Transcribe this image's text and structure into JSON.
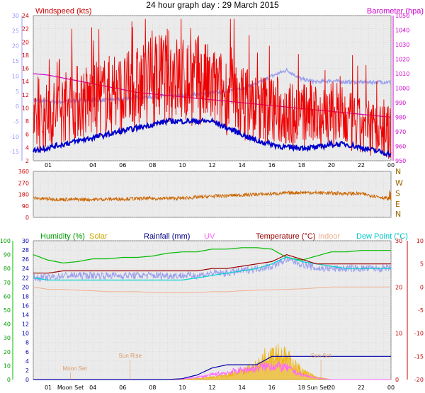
{
  "title": "24 hour graph day : 29 March 2015",
  "colors": {
    "wind": "#ee0000",
    "gust_avg": "#0000cc",
    "barometer": "#d000d0",
    "temp_shade": "#9aa0ee",
    "direction": "#cc6600",
    "humidity": "#00bb00",
    "temperature": "#990000",
    "dewpoint": "#00d0d0",
    "indoor": "#f0b090",
    "rainfall": "#0000aa",
    "solar": "#eeb000",
    "uv": "#ff66ff",
    "temp_axis": "#9999ff",
    "ticklabel": "#cc0000",
    "dir_letters": "#996600",
    "grid": "#cfcfcf",
    "panel_bg": "#ebebeb"
  },
  "x_labels": [
    "01",
    "04",
    "06",
    "08",
    "10",
    "12",
    "14",
    "16",
    "18",
    "20",
    "22",
    "00"
  ],
  "chart_data": [
    {
      "type": "line",
      "title": "",
      "left_axis_label": "Windspeed (kts)",
      "right_axis_label": "Barometer (hpa)",
      "ylim_wind": [
        2,
        24
      ],
      "wind_ticks": [
        2,
        4,
        6,
        8,
        10,
        12,
        14,
        16,
        18,
        20,
        22,
        24
      ],
      "ylim_baro": [
        950,
        1050
      ],
      "baro_ticks": [
        950,
        960,
        970,
        980,
        990,
        1000,
        1010,
        1020,
        1030,
        1040,
        1050
      ],
      "temp_ticks": [
        -15,
        -10,
        -5,
        0,
        5,
        10,
        15,
        20,
        25,
        30
      ],
      "ylim_temp": [
        -18,
        30
      ],
      "hours": [
        0,
        1,
        2,
        3,
        4,
        5,
        6,
        7,
        8,
        9,
        10,
        11,
        12,
        13,
        14,
        15,
        16,
        17,
        18,
        19,
        20,
        21,
        22,
        23,
        24
      ],
      "series": [
        {
          "name": "Windspeed",
          "values": [
            7,
            9,
            10,
            11,
            11,
            12,
            12,
            13,
            14,
            15,
            14,
            14,
            13,
            12,
            11,
            10,
            10,
            9,
            9,
            9,
            9,
            8,
            7,
            7,
            6
          ]
        },
        {
          "name": "Windspeed avg",
          "values": [
            3.5,
            4,
            4.5,
            5,
            5.5,
            6,
            6.5,
            7,
            7.5,
            8,
            8,
            8,
            8,
            7,
            6,
            5,
            4.5,
            4,
            4,
            4,
            4.5,
            4.5,
            4,
            3.5,
            3
          ]
        },
        {
          "name": "Barometer",
          "values": [
            1010,
            1009,
            1007,
            1005,
            1003,
            1001,
            999,
            997,
            996,
            995,
            994,
            993,
            992,
            991,
            990,
            989,
            988,
            987,
            986,
            985,
            984,
            983,
            982,
            981,
            980
          ]
        },
        {
          "name": "Temperature",
          "values": [
            2,
            1.5,
            1.5,
            2,
            2,
            2,
            2.5,
            3,
            3,
            3.5,
            3.5,
            4,
            4.5,
            5,
            6,
            7.5,
            10,
            12,
            9,
            8,
            8.5,
            8,
            8,
            8,
            8
          ]
        }
      ]
    },
    {
      "type": "line",
      "ylim": [
        0,
        360
      ],
      "ticks": [
        0,
        90,
        180,
        270,
        360
      ],
      "direction_letters": [
        "N",
        "W",
        "S",
        "E",
        "N"
      ],
      "hours": [
        0,
        2,
        4,
        6,
        8,
        10,
        12,
        14,
        16,
        18,
        20,
        22,
        24
      ],
      "series": [
        {
          "name": "Wind direction",
          "values": [
            150,
            140,
            140,
            145,
            148,
            150,
            165,
            175,
            185,
            195,
            190,
            185,
            145
          ]
        }
      ]
    },
    {
      "type": "line",
      "labels": {
        "humidity": "Humidity (%)",
        "solar": "Solar",
        "rainfall": "Rainfall (mm)",
        "uv": "UV",
        "temperature": "Temperature (°C)",
        "indoor": "Indoor",
        "dewpoint": "Dew Point (°C)"
      },
      "humidity_ticks": [
        0,
        10,
        20,
        30,
        40,
        50,
        60,
        70,
        80,
        90,
        100
      ],
      "ylim_humidity": [
        0,
        100
      ],
      "rain_ticks": [
        0,
        2,
        4,
        6,
        8,
        10,
        12,
        14,
        16,
        18,
        20,
        22,
        24,
        26,
        28,
        30
      ],
      "ylim_rain": [
        0,
        30
      ],
      "temp_right_ticks": [
        -20,
        -15,
        -10,
        -5,
        0,
        5,
        10
      ],
      "ylim_temp_right": [
        -20,
        10
      ],
      "hours": [
        0,
        1,
        2,
        3,
        4,
        5,
        6,
        7,
        8,
        9,
        10,
        11,
        12,
        13,
        14,
        15,
        16,
        17,
        18,
        19,
        20,
        21,
        22,
        23,
        24
      ],
      "series": [
        {
          "name": "Humidity",
          "values": [
            90,
            86,
            84,
            85,
            87,
            87,
            88,
            88,
            89,
            91,
            92,
            92,
            94,
            94,
            95,
            95,
            94,
            88,
            86,
            89,
            92,
            92,
            93,
            93,
            93
          ]
        },
        {
          "name": "Temperature",
          "values": [
            3,
            3,
            3.5,
            3.5,
            3.5,
            3.5,
            3.5,
            3.5,
            3.5,
            3.5,
            3.5,
            3.5,
            4,
            4,
            4.5,
            5,
            5.5,
            7,
            6,
            5,
            5,
            5,
            5,
            5,
            5
          ]
        },
        {
          "name": "Dew Point",
          "values": [
            2,
            1.5,
            1.5,
            1.5,
            1.5,
            1.5,
            1.5,
            1.5,
            1.5,
            1.5,
            1.5,
            2,
            2.5,
            3,
            3.5,
            4,
            5,
            6.5,
            5.5,
            5,
            4.5,
            4,
            4,
            4,
            4
          ]
        },
        {
          "name": "Indoor",
          "values": [
            20,
            19.5,
            19.5,
            19.3,
            19.2,
            19,
            19,
            19,
            18.8,
            18.8,
            18.8,
            18.8,
            19,
            19,
            19.2,
            19.3,
            19.4,
            19.5,
            19.6,
            19.8,
            20,
            20,
            20,
            20,
            20
          ]
        },
        {
          "name": "Rainfall",
          "values": [
            0,
            0,
            0,
            0,
            0,
            0,
            0,
            0,
            0,
            0,
            0.2,
            1,
            2.5,
            3.2,
            3.2,
            3.2,
            5,
            5,
            5,
            5,
            5,
            5,
            5,
            5,
            5
          ]
        },
        {
          "name": "Solar",
          "values": [
            0,
            0,
            0,
            0,
            0,
            0,
            0,
            0,
            0,
            0,
            0,
            0.2,
            0.5,
            1,
            2,
            3,
            7,
            5,
            2,
            0.5,
            0,
            0,
            0,
            0,
            0
          ]
        },
        {
          "name": "UV",
          "values": [
            0,
            0,
            0,
            0,
            0,
            0,
            0,
            0,
            0,
            0,
            0.1,
            0.5,
            1,
            1.5,
            2,
            2.5,
            3,
            2.5,
            1,
            0.3,
            0,
            0,
            0,
            0,
            0
          ]
        }
      ],
      "events": [
        {
          "label": "Moon Set",
          "hour": 2.5
        },
        {
          "label": "Sun Rise",
          "hour": 6.5
        },
        {
          "label": "Sun Set",
          "hour": 19.3
        }
      ],
      "axis_event_labels": [
        "Moon Set",
        "Sun Set"
      ]
    }
  ]
}
